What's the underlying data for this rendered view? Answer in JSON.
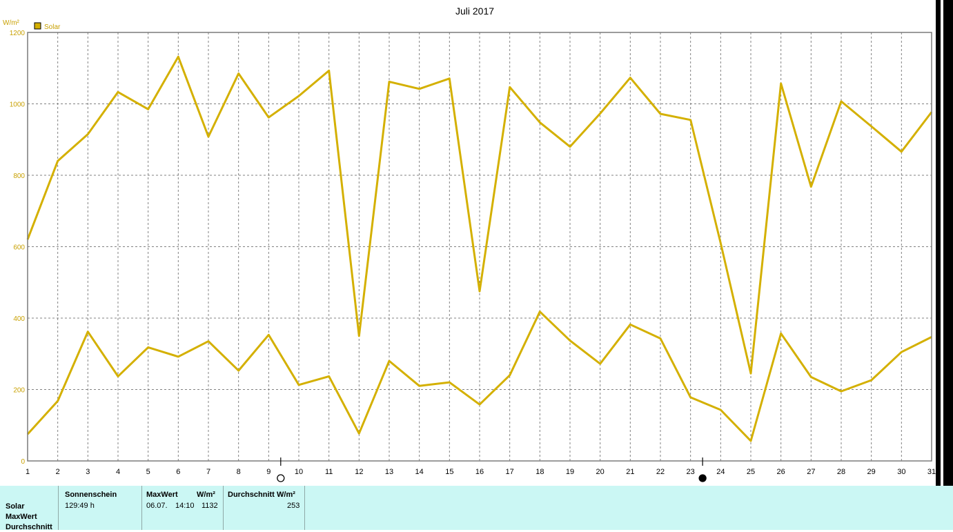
{
  "chart_data": {
    "type": "line",
    "title": "Juli 2017",
    "ylabel": "W/m²",
    "ylim": [
      0,
      1200
    ],
    "yticks": [
      0,
      200,
      400,
      600,
      800,
      1000,
      1200
    ],
    "x": [
      1,
      2,
      3,
      4,
      5,
      6,
      7,
      8,
      9,
      10,
      11,
      12,
      13,
      14,
      15,
      16,
      17,
      18,
      19,
      20,
      21,
      22,
      23,
      24,
      25,
      26,
      27,
      28,
      29,
      30,
      31
    ],
    "grid": true,
    "legend": {
      "position": "top-left",
      "label": "Solar",
      "color": "#d4b000"
    },
    "series": [
      {
        "name": "Solar",
        "role": "max",
        "color": "#d4b000",
        "values": [
          620,
          840,
          915,
          1033,
          985,
          1132,
          908,
          1085,
          962,
          1022,
          1093,
          350,
          1062,
          1042,
          1071,
          475,
          1047,
          948,
          880,
          973,
          1073,
          972,
          955,
          610,
          245,
          1057,
          768,
          1007,
          937,
          866,
          977
        ]
      },
      {
        "name": "Solar",
        "role": "average",
        "color": "#d4b000",
        "values": [
          75,
          168,
          362,
          237,
          318,
          292,
          335,
          253,
          353,
          213,
          237,
          77,
          280,
          210,
          220,
          158,
          240,
          418,
          337,
          272,
          382,
          343,
          178,
          143,
          56,
          357,
          235,
          195,
          226,
          305,
          347
        ]
      }
    ],
    "moon_markers": [
      {
        "day": 9.4,
        "phase": "full"
      },
      {
        "day": 23.4,
        "phase": "new"
      }
    ]
  },
  "footer": {
    "row_labels": [
      "Solar",
      "MaxWert",
      "Durchschnitt"
    ],
    "sonnenschein": {
      "header": "Sonnenschein",
      "value": "129:49 h"
    },
    "maxwert": {
      "header": "MaxWert",
      "unit": "W/m²",
      "date": "06.07.",
      "time": "14:10",
      "value": "1132"
    },
    "durchschnitt": {
      "header": "Durchschnitt",
      "unit": "W/m²",
      "value": "253"
    }
  }
}
